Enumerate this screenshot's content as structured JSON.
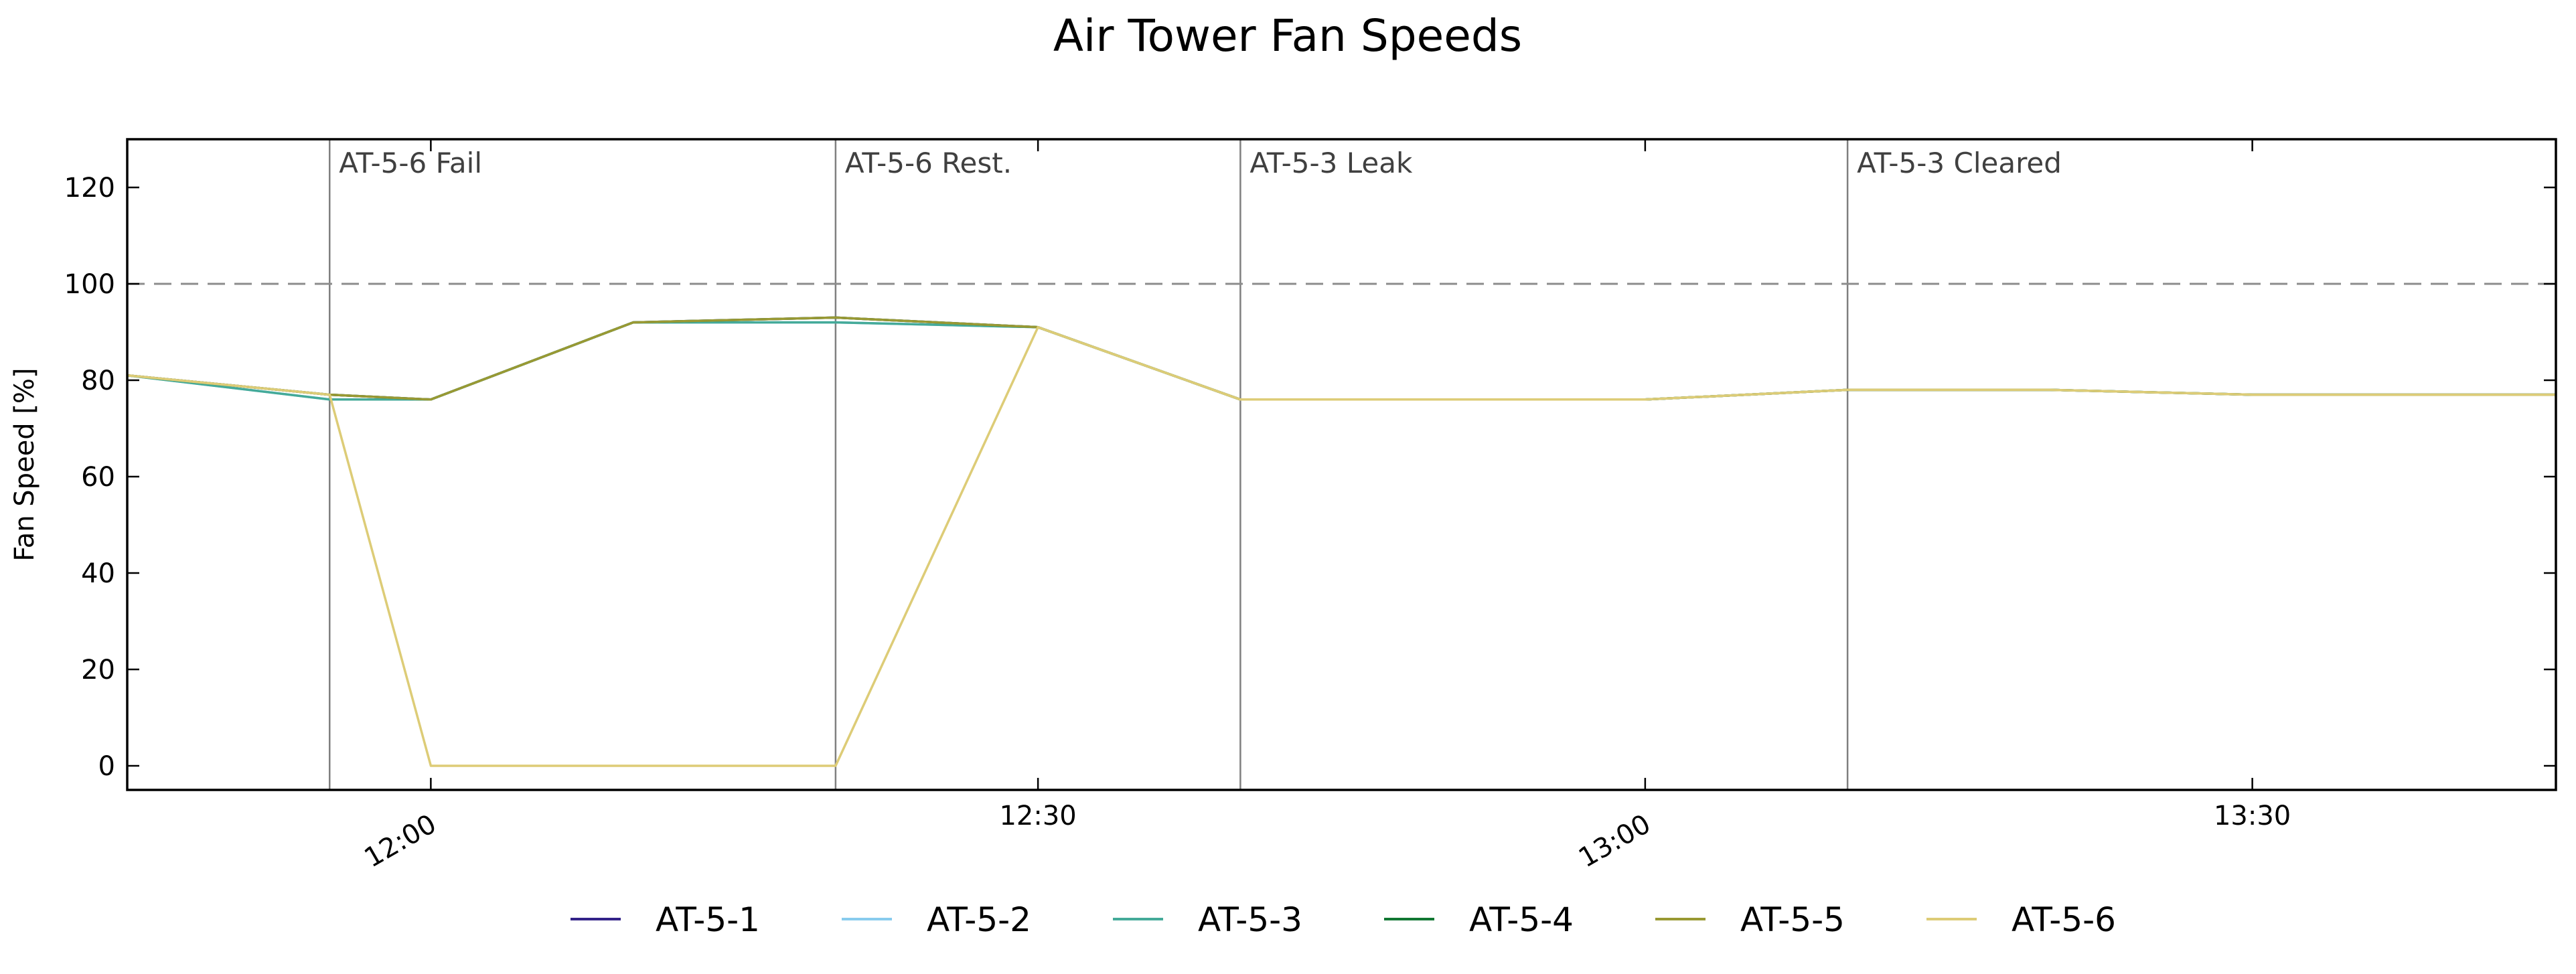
{
  "chart_data": {
    "type": "line",
    "title": "Air Tower Fan Speeds",
    "xlabel": "",
    "ylabel": "Fan Speed [%]",
    "ylim": [
      -5,
      130
    ],
    "xlim": [
      "11:45",
      "13:45"
    ],
    "yticks": [
      0,
      20,
      40,
      60,
      80,
      100,
      120
    ],
    "xticks": [
      {
        "value": "12:00",
        "label": "12:00",
        "rotated": true
      },
      {
        "value": "12:30",
        "label": "12:30",
        "rotated": false
      },
      {
        "value": "13:00",
        "label": "13:00",
        "rotated": true
      },
      {
        "value": "13:30",
        "label": "13:30",
        "rotated": false
      }
    ],
    "reference_line": {
      "y": 100,
      "style": "dashed",
      "color": "#8c8c8c"
    },
    "events": [
      {
        "x": "11:55",
        "label": "AT-5-6 Fail"
      },
      {
        "x": "12:20",
        "label": "AT-5-6 Rest."
      },
      {
        "x": "12:40",
        "label": "AT-5-3 Leak"
      },
      {
        "x": "13:10",
        "label": "AT-5-3 Cleared"
      }
    ],
    "x": [
      "11:45",
      "11:55",
      "12:00",
      "12:10",
      "12:20",
      "12:30",
      "12:40",
      "12:50",
      "13:00",
      "13:10",
      "13:20",
      "13:30",
      "13:45"
    ],
    "series": [
      {
        "name": "AT-5-1",
        "color": "#332288",
        "values": [
          81,
          77,
          76,
          92,
          93,
          91,
          76,
          76,
          76,
          78,
          78,
          77,
          77
        ]
      },
      {
        "name": "AT-5-2",
        "color": "#88ccee",
        "values": [
          81,
          76,
          76,
          92,
          92,
          91,
          76,
          76,
          76,
          78,
          78,
          77,
          77
        ]
      },
      {
        "name": "AT-5-3",
        "color": "#44aa99",
        "values": [
          81,
          76,
          76,
          92,
          92,
          91,
          76,
          76,
          76,
          78,
          78,
          77,
          77
        ]
      },
      {
        "name": "AT-5-4",
        "color": "#117733",
        "values": [
          81,
          77,
          76,
          92,
          93,
          91,
          76,
          76,
          76,
          78,
          78,
          77,
          77
        ]
      },
      {
        "name": "AT-5-5",
        "color": "#999933",
        "values": [
          81,
          77,
          76,
          92,
          93,
          91,
          76,
          76,
          76,
          78,
          78,
          77,
          77
        ]
      },
      {
        "name": "AT-5-6",
        "color": "#ddcc77",
        "values": [
          81,
          77,
          0,
          0,
          0,
          91,
          76,
          76,
          76,
          78,
          78,
          77,
          77
        ]
      }
    ],
    "legend_position": "bottom-center",
    "grid": false
  }
}
